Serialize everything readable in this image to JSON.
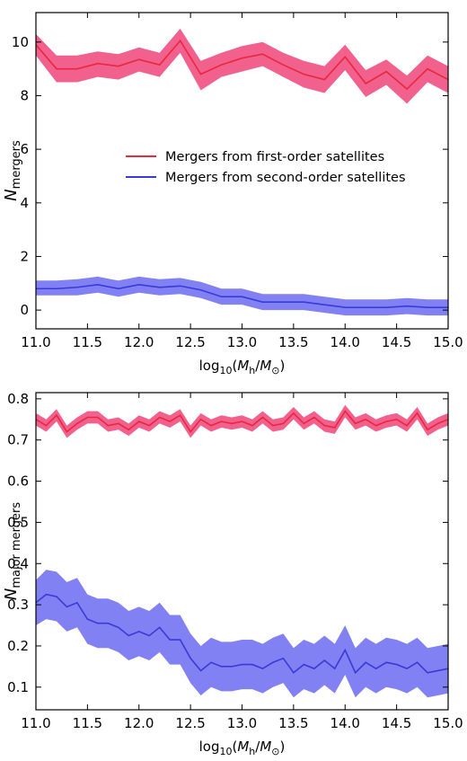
{
  "chart_data": [
    {
      "type": "line",
      "ylabel_main": "N",
      "ylabel_sub": "mergers",
      "xlabel_main": "log",
      "xlabel_sub": "10",
      "xlabel_rest": "(M",
      "xlabel_h": "h",
      "xlabel_mid": "/M",
      "xlabel_sun": "⊙",
      "xlabel_close": ")",
      "xlim": [
        11.0,
        15.0
      ],
      "ylim": [
        -0.7,
        11.1
      ],
      "xticks": [
        "11.0",
        "11.5",
        "12.0",
        "12.5",
        "13.0",
        "13.5",
        "14.0",
        "14.5",
        "15.0"
      ],
      "yticks": [
        "0",
        "2",
        "4",
        "6",
        "8",
        "10"
      ],
      "legend": {
        "placement": "center",
        "entries": [
          {
            "label": "Mergers from first-order satellites",
            "color": "#e8283c"
          },
          {
            "label": "Mergers from second-order satellites",
            "color": "#3a3ad8"
          }
        ]
      },
      "series": [
        {
          "name": "Mergers from first-order satellites",
          "color": "#e8283c",
          "band_color": "#f0457a",
          "x": [
            11.0,
            11.2,
            11.4,
            11.6,
            11.8,
            12.0,
            12.2,
            12.4,
            12.6,
            12.8,
            13.0,
            13.2,
            13.4,
            13.6,
            13.8,
            14.0,
            14.2,
            14.4,
            14.6,
            14.8,
            15.0
          ],
          "values": [
            9.9,
            9.0,
            9.0,
            9.2,
            9.1,
            9.35,
            9.15,
            10.05,
            8.8,
            9.15,
            9.4,
            9.55,
            9.15,
            8.8,
            8.6,
            9.45,
            8.45,
            8.9,
            8.25,
            9.0,
            8.6
          ],
          "lower": [
            9.5,
            8.5,
            8.5,
            8.7,
            8.6,
            8.9,
            8.7,
            9.6,
            8.2,
            8.7,
            8.9,
            9.1,
            8.7,
            8.3,
            8.1,
            8.95,
            7.95,
            8.4,
            7.7,
            8.5,
            8.1
          ],
          "upper": [
            10.3,
            9.5,
            9.5,
            9.65,
            9.55,
            9.8,
            9.6,
            10.5,
            9.3,
            9.6,
            9.85,
            10.0,
            9.6,
            9.3,
            9.1,
            9.9,
            8.95,
            9.35,
            8.75,
            9.5,
            9.1
          ]
        },
        {
          "name": "Mergers from second-order satellites",
          "color": "#3a3ad8",
          "band_color": "#6b6bf2",
          "x": [
            11.0,
            11.2,
            11.4,
            11.6,
            11.8,
            12.0,
            12.2,
            12.4,
            12.6,
            12.8,
            13.0,
            13.2,
            13.4,
            13.6,
            13.8,
            14.0,
            14.2,
            14.4,
            14.6,
            14.8,
            15.0
          ],
          "values": [
            0.8,
            0.8,
            0.85,
            0.95,
            0.8,
            0.95,
            0.85,
            0.9,
            0.75,
            0.5,
            0.5,
            0.3,
            0.3,
            0.3,
            0.2,
            0.1,
            0.1,
            0.1,
            0.15,
            0.1,
            0.1
          ],
          "lower": [
            0.55,
            0.55,
            0.55,
            0.65,
            0.5,
            0.65,
            0.55,
            0.6,
            0.45,
            0.2,
            0.2,
            0.0,
            0.0,
            0.0,
            -0.1,
            -0.2,
            -0.2,
            -0.2,
            -0.15,
            -0.2,
            -0.2
          ],
          "upper": [
            1.1,
            1.1,
            1.15,
            1.25,
            1.1,
            1.25,
            1.15,
            1.2,
            1.05,
            0.8,
            0.8,
            0.6,
            0.6,
            0.6,
            0.5,
            0.4,
            0.4,
            0.4,
            0.45,
            0.4,
            0.4
          ]
        }
      ]
    },
    {
      "type": "line",
      "ylabel_main": "N",
      "ylabel_sub": "major mergers",
      "xlabel_main": "log",
      "xlabel_sub": "10",
      "xlabel_rest": "(M",
      "xlabel_h": "h",
      "xlabel_mid": "/M",
      "xlabel_sun": "⊙",
      "xlabel_close": ")",
      "xlim": [
        11.0,
        15.0
      ],
      "ylim": [
        0.045,
        0.815
      ],
      "xticks": [
        "11.0",
        "11.5",
        "12.0",
        "12.5",
        "13.0",
        "13.5",
        "14.0",
        "14.5",
        "15.0"
      ],
      "yticks": [
        "0.1",
        "0.2",
        "0.3",
        "0.4",
        "0.5",
        "0.6",
        "0.7",
        "0.8"
      ],
      "series": [
        {
          "name": "Mergers from first-order satellites",
          "color": "#e8283c",
          "band_color": "#f0457a",
          "x": [
            11.0,
            11.1,
            11.2,
            11.3,
            11.4,
            11.5,
            11.6,
            11.7,
            11.8,
            11.9,
            12.0,
            12.1,
            12.2,
            12.3,
            12.4,
            12.5,
            12.6,
            12.7,
            12.8,
            12.9,
            13.0,
            13.1,
            13.2,
            13.3,
            13.4,
            13.5,
            13.6,
            13.7,
            13.8,
            13.9,
            14.0,
            14.1,
            14.2,
            14.3,
            14.4,
            14.5,
            14.6,
            14.7,
            14.8,
            14.9,
            15.0
          ],
          "values": [
            0.75,
            0.735,
            0.76,
            0.72,
            0.74,
            0.755,
            0.755,
            0.735,
            0.74,
            0.725,
            0.745,
            0.735,
            0.755,
            0.745,
            0.76,
            0.72,
            0.75,
            0.735,
            0.745,
            0.74,
            0.745,
            0.735,
            0.755,
            0.735,
            0.74,
            0.765,
            0.74,
            0.755,
            0.735,
            0.73,
            0.77,
            0.74,
            0.75,
            0.735,
            0.745,
            0.75,
            0.735,
            0.765,
            0.725,
            0.74,
            0.75
          ],
          "lower": [
            0.735,
            0.72,
            0.745,
            0.705,
            0.725,
            0.74,
            0.74,
            0.72,
            0.725,
            0.71,
            0.73,
            0.72,
            0.74,
            0.73,
            0.745,
            0.705,
            0.735,
            0.72,
            0.73,
            0.725,
            0.73,
            0.72,
            0.74,
            0.72,
            0.725,
            0.75,
            0.725,
            0.74,
            0.72,
            0.715,
            0.755,
            0.725,
            0.735,
            0.72,
            0.73,
            0.735,
            0.72,
            0.75,
            0.71,
            0.725,
            0.735
          ],
          "upper": [
            0.765,
            0.75,
            0.775,
            0.735,
            0.755,
            0.77,
            0.77,
            0.75,
            0.755,
            0.74,
            0.76,
            0.75,
            0.77,
            0.76,
            0.775,
            0.735,
            0.765,
            0.75,
            0.76,
            0.755,
            0.76,
            0.75,
            0.77,
            0.75,
            0.755,
            0.78,
            0.755,
            0.77,
            0.75,
            0.745,
            0.785,
            0.755,
            0.765,
            0.75,
            0.76,
            0.765,
            0.75,
            0.78,
            0.74,
            0.755,
            0.765
          ]
        },
        {
          "name": "Mergers from second-order satellites",
          "color": "#3a3ad8",
          "band_color": "#6b6bf2",
          "x": [
            11.0,
            11.1,
            11.2,
            11.3,
            11.4,
            11.5,
            11.6,
            11.7,
            11.8,
            11.9,
            12.0,
            12.1,
            12.2,
            12.3,
            12.4,
            12.5,
            12.6,
            12.7,
            12.8,
            12.9,
            13.0,
            13.1,
            13.2,
            13.3,
            13.4,
            13.5,
            13.6,
            13.7,
            13.8,
            13.9,
            14.0,
            14.1,
            14.2,
            14.3,
            14.4,
            14.5,
            14.6,
            14.7,
            14.8,
            14.9,
            15.0
          ],
          "values": [
            0.305,
            0.325,
            0.32,
            0.295,
            0.305,
            0.265,
            0.255,
            0.255,
            0.245,
            0.225,
            0.235,
            0.225,
            0.245,
            0.215,
            0.215,
            0.17,
            0.14,
            0.16,
            0.15,
            0.15,
            0.155,
            0.155,
            0.145,
            0.16,
            0.17,
            0.135,
            0.155,
            0.145,
            0.165,
            0.145,
            0.19,
            0.135,
            0.16,
            0.145,
            0.16,
            0.155,
            0.145,
            0.16,
            0.135,
            0.14,
            0.145
          ],
          "lower": [
            0.25,
            0.265,
            0.26,
            0.235,
            0.245,
            0.205,
            0.195,
            0.195,
            0.185,
            0.165,
            0.175,
            0.165,
            0.185,
            0.155,
            0.155,
            0.11,
            0.08,
            0.1,
            0.09,
            0.09,
            0.095,
            0.095,
            0.085,
            0.1,
            0.11,
            0.075,
            0.095,
            0.085,
            0.105,
            0.085,
            0.13,
            0.075,
            0.1,
            0.085,
            0.1,
            0.095,
            0.085,
            0.1,
            0.075,
            0.08,
            0.085
          ],
          "upper": [
            0.36,
            0.385,
            0.38,
            0.355,
            0.365,
            0.325,
            0.315,
            0.315,
            0.305,
            0.285,
            0.295,
            0.285,
            0.305,
            0.275,
            0.275,
            0.23,
            0.2,
            0.22,
            0.21,
            0.21,
            0.215,
            0.215,
            0.205,
            0.22,
            0.23,
            0.195,
            0.215,
            0.205,
            0.225,
            0.205,
            0.25,
            0.195,
            0.22,
            0.205,
            0.22,
            0.215,
            0.205,
            0.22,
            0.195,
            0.2,
            0.205
          ]
        }
      ]
    }
  ]
}
